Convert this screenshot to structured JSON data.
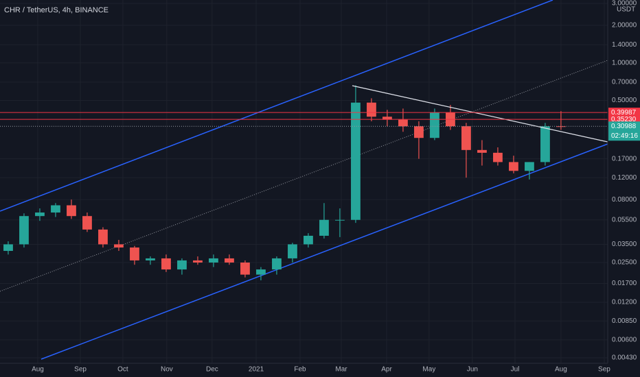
{
  "chart_data": {
    "type": "candlestick",
    "title": "CHR / TetherUS, 4h, BINANCE",
    "currency": "USDT",
    "log_scale": true,
    "grid": true,
    "up_color": "#26a69a",
    "down_color": "#ef5350",
    "open": [
      0.031,
      0.035,
      0.059,
      0.063,
      0.072,
      0.059,
      0.046,
      0.035,
      0.033,
      0.026,
      0.027,
      0.022,
      0.026,
      0.025,
      0.027,
      0.025,
      0.02,
      0.022,
      0.027,
      0.035,
      0.041,
      0.055,
      0.055,
      0.48,
      0.37,
      0.35,
      0.31,
      0.25,
      0.4,
      0.31,
      0.2,
      0.19,
      0.16,
      0.136,
      0.16,
      0.31
    ],
    "high": [
      0.037,
      0.062,
      0.068,
      0.075,
      0.08,
      0.063,
      0.048,
      0.038,
      0.034,
      0.028,
      0.029,
      0.027,
      0.028,
      0.029,
      0.029,
      0.026,
      0.023,
      0.028,
      0.036,
      0.043,
      0.075,
      0.068,
      0.66,
      0.52,
      0.42,
      0.43,
      0.34,
      0.43,
      0.46,
      0.33,
      0.24,
      0.21,
      0.18,
      0.16,
      0.33,
      0.41
    ],
    "low": [
      0.029,
      0.033,
      0.054,
      0.058,
      0.056,
      0.044,
      0.033,
      0.031,
      0.024,
      0.024,
      0.021,
      0.02,
      0.024,
      0.023,
      0.024,
      0.019,
      0.018,
      0.02,
      0.025,
      0.033,
      0.039,
      0.04,
      0.052,
      0.34,
      0.31,
      0.28,
      0.17,
      0.24,
      0.29,
      0.12,
      0.15,
      0.15,
      0.13,
      0.116,
      0.15,
      0.29
    ],
    "close": [
      0.035,
      0.059,
      0.063,
      0.072,
      0.059,
      0.046,
      0.035,
      0.033,
      0.026,
      0.027,
      0.022,
      0.026,
      0.025,
      0.027,
      0.025,
      0.02,
      0.022,
      0.027,
      0.035,
      0.041,
      0.055,
      0.055,
      0.48,
      0.37,
      0.35,
      0.31,
      0.25,
      0.4,
      0.31,
      0.2,
      0.19,
      0.16,
      0.136,
      0.16,
      0.31,
      0.30988
    ],
    "xlim": [
      -0.52,
      37.96
    ],
    "xticks": [
      {
        "value": 1.87,
        "label": "Aug"
      },
      {
        "value": 4.57,
        "label": "Sep"
      },
      {
        "value": 7.26,
        "label": "Oct"
      },
      {
        "value": 10.04,
        "label": "Nov"
      },
      {
        "value": 12.91,
        "label": "Dec"
      },
      {
        "value": 15.7,
        "label": "2021"
      },
      {
        "value": 18.48,
        "label": "Feb"
      },
      {
        "value": 21.09,
        "label": "Mar"
      },
      {
        "value": 23.96,
        "label": "Apr"
      },
      {
        "value": 26.65,
        "label": "May"
      },
      {
        "value": 29.39,
        "label": "Jun"
      },
      {
        "value": 32.09,
        "label": "Jul"
      },
      {
        "value": 35,
        "label": "Aug"
      },
      {
        "value": 37.74,
        "label": "Sep"
      }
    ],
    "ylim": [
      0.0043,
      3
    ],
    "yticks": [
      {
        "value": 3,
        "label": "3.00000"
      },
      {
        "value": 2,
        "label": "2.00000"
      },
      {
        "value": 1.4,
        "label": "1.40000"
      },
      {
        "value": 1,
        "label": "1.00000"
      },
      {
        "value": 0.7,
        "label": "0.70000"
      },
      {
        "value": 0.5,
        "label": "0.50000"
      },
      {
        "value": 0.17,
        "label": "0.17000"
      },
      {
        "value": 0.12,
        "label": "0.12000"
      },
      {
        "value": 0.08,
        "label": "0.08000"
      },
      {
        "value": 0.055,
        "label": "0.05500"
      },
      {
        "value": 0.035,
        "label": "0.03500"
      },
      {
        "value": 0.025,
        "label": "0.02500"
      },
      {
        "value": 0.017,
        "label": "0.01700"
      },
      {
        "value": 0.012,
        "label": "0.01200"
      },
      {
        "value": 0.0085,
        "label": "0.00850"
      },
      {
        "value": 0.006,
        "label": "0.00600"
      },
      {
        "value": 0.0043,
        "label": "0.00430"
      }
    ],
    "price_lines": [
      {
        "value": 0.39987,
        "label": "0.39987",
        "color": "#f23645"
      },
      {
        "value": 0.3523,
        "label": "0.35230",
        "color": "#f23645"
      },
      {
        "value": 0.30988,
        "label": "0.30988",
        "color": "#26a69a"
      }
    ],
    "countdown": "02:49:16"
  }
}
